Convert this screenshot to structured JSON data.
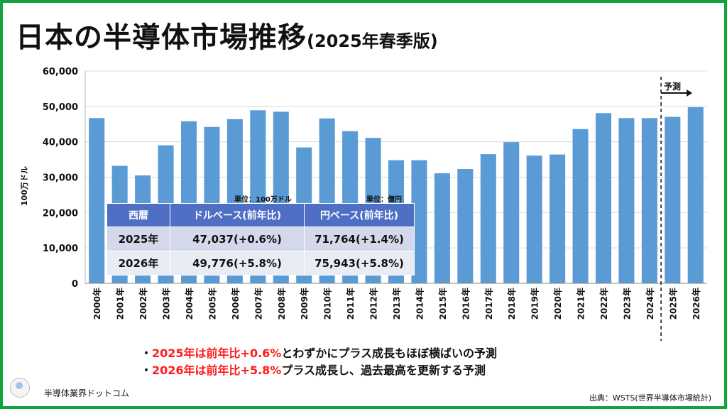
{
  "header": {
    "title": "日本の半導体市場推移",
    "subtitle": "(2025年春季版)"
  },
  "chart_data": {
    "type": "bar",
    "ylabel": "100万ドル",
    "ylim": [
      0,
      60000
    ],
    "yticks": [
      "0",
      "10,000",
      "20,000",
      "30,000",
      "40,000",
      "50,000",
      "60,000"
    ],
    "categories": [
      "2000年",
      "2001年",
      "2002年",
      "2003年",
      "2004年",
      "2005年",
      "2006年",
      "2007年",
      "2008年",
      "2009年",
      "2010年",
      "2011年",
      "2012年",
      "2013年",
      "2014年",
      "2015年",
      "2016年",
      "2017年",
      "2018年",
      "2019年",
      "2020年",
      "2021年",
      "2022年",
      "2023年",
      "2024年",
      "2025年",
      "2026年"
    ],
    "values": [
      46700,
      33200,
      30500,
      39000,
      45800,
      44200,
      46400,
      48900,
      48500,
      38400,
      46600,
      43000,
      41100,
      34800,
      34800,
      31100,
      32300,
      36500,
      39900,
      36100,
      36400,
      43600,
      48100,
      46700,
      46700,
      47037,
      49776
    ],
    "forecast_start": "2025年",
    "forecast_label": "予測",
    "bar_color": "#5b9bd5"
  },
  "table": {
    "unit_dollar": "単位：100万ドル",
    "unit_yen": "単位：億円",
    "headers": [
      "西暦",
      "ドルベース(前年比)",
      "円ベース(前年比)"
    ],
    "rows": [
      [
        "2025年",
        "47,037(+0.6%)",
        "71,764(+1.4%)"
      ],
      [
        "2026年",
        "49,776(+5.8%)",
        "75,943(+5.8%)"
      ]
    ]
  },
  "notes": [
    {
      "bullet": "・",
      "highlight": "2025年は前年比+0.6%",
      "rest": "とわずかにプラス成長もほぼ横ばいの予測"
    },
    {
      "bullet": "・",
      "highlight": "2026年は前年比+5.8%",
      "rest": "プラス成長し、過去最高を更新する予測"
    }
  ],
  "footer": {
    "site": "半導体業界ドットコム",
    "source": "出典：WSTS(世界半導体市場統計)"
  },
  "colors": {
    "frame": "#12a33a",
    "header_fill": "#4f6fc5",
    "highlight": "#ff1a1a"
  }
}
